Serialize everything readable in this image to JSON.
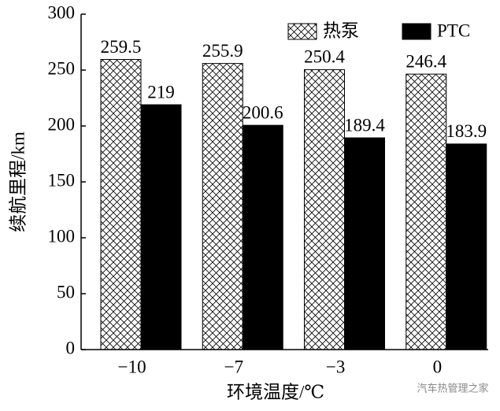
{
  "chart_data": {
    "type": "bar",
    "xlabel": "环境温度/℃",
    "ylabel": "续航里程/km",
    "categories": [
      "−10",
      "−7",
      "−3",
      "0"
    ],
    "series": [
      {
        "name": "热泵",
        "color": "#000000",
        "pattern": "crosshatch",
        "values": [
          259.5,
          255.9,
          250.4,
          246.4
        ]
      },
      {
        "name": "PTC",
        "color": "#000000",
        "values": [
          219,
          200.6,
          189.4,
          183.9
        ]
      }
    ],
    "ylim": [
      0,
      300
    ],
    "yticks": [
      0,
      50,
      100,
      150,
      200,
      250,
      300
    ],
    "legend": "top-right",
    "watermark": "汽车热管理之家"
  }
}
